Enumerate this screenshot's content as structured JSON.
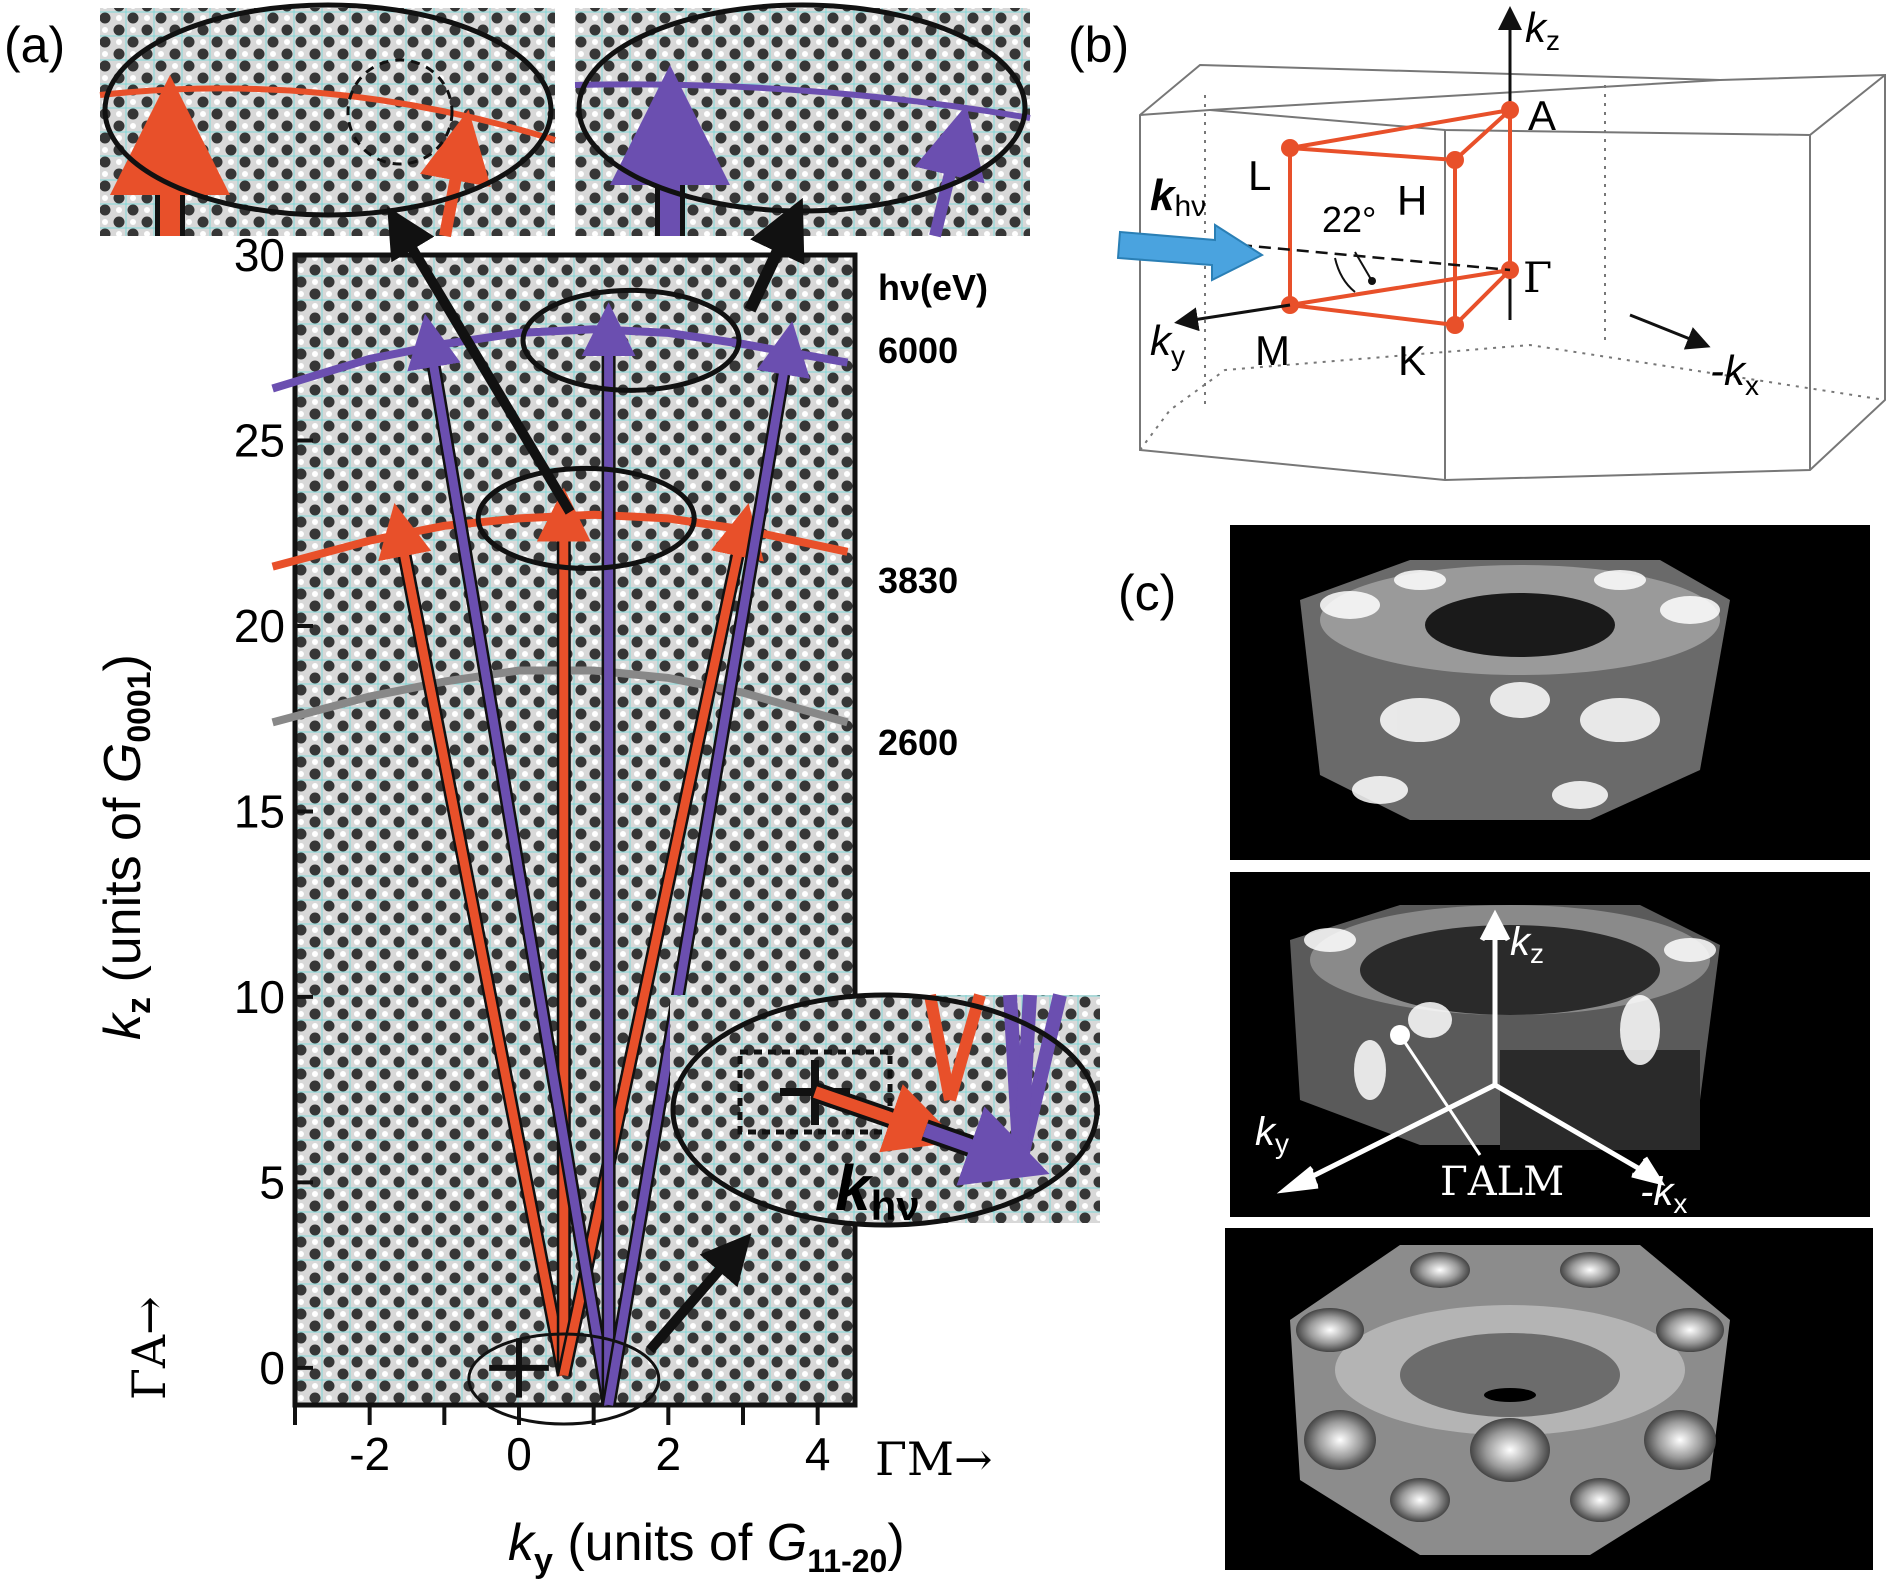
{
  "figure": {
    "panel_a": {
      "label": "(a)",
      "ylabel_k": "k",
      "ylabel_sub": "z",
      "ylabel_units": " (units of ",
      "ylabel_G": "G",
      "ylabel_Gsub": "0001",
      "ylabel_close": ")",
      "xlabel_k": "k",
      "xlabel_sub": "y",
      "xlabel_units": " (units of ",
      "xlabel_G": "G",
      "xlabel_Gsub": "11-20",
      "xlabel_close": ")",
      "gamma_a": "ΓA→",
      "gamma_m": "ΓM→",
      "hv_header": "hν(eV)",
      "inset_label_k": "k",
      "inset_label_sub": "hν",
      "chart_data": {
        "type": "line",
        "title": "",
        "xlabel": "ky (units of G11-20)",
        "ylabel": "kz (units of G0001)",
        "xlim": [
          -3,
          4.5
        ],
        "ylim": [
          -1,
          30
        ],
        "x_ticks": [
          -2,
          0,
          2,
          4
        ],
        "y_ticks": [
          0,
          5,
          10,
          15,
          20,
          25,
          30
        ],
        "series": [
          {
            "name": "6000",
            "color": "#6b4fb0",
            "x": [
              -3.3,
              -2,
              -1,
              0,
              1,
              2,
              3,
              4.4
            ],
            "y": [
              26.4,
              27.2,
              27.6,
              27.9,
              28.0,
              27.9,
              27.6,
              27.1
            ]
          },
          {
            "name": "3830",
            "color": "#e8502a",
            "x": [
              -3.3,
              -2,
              -1,
              0,
              1,
              2,
              3,
              4.4
            ],
            "y": [
              21.6,
              22.3,
              22.7,
              22.9,
              23.0,
              22.9,
              22.6,
              22.0
            ]
          },
          {
            "name": "2600",
            "color": "#888888",
            "x": [
              -3.3,
              -2,
              -1,
              0,
              1,
              2,
              3,
              4.4
            ],
            "y": [
              17.4,
              18.1,
              18.5,
              18.8,
              18.8,
              18.6,
              18.2,
              17.4
            ]
          }
        ],
        "arrows": [
          {
            "color": "#e8502a",
            "from": [
              0.6,
              -0.2
            ],
            "to": [
              -1.6,
              22.6
            ]
          },
          {
            "color": "#e8502a",
            "from": [
              0.6,
              -0.2
            ],
            "to": [
              0.6,
              23.0
            ]
          },
          {
            "color": "#e8502a",
            "from": [
              0.6,
              -0.2
            ],
            "to": [
              3.0,
              22.6
            ]
          },
          {
            "color": "#6b4fb0",
            "from": [
              1.2,
              -1.0
            ],
            "to": [
              -1.2,
              27.7
            ]
          },
          {
            "color": "#6b4fb0",
            "from": [
              1.2,
              -1.0
            ],
            "to": [
              1.2,
              28.0
            ]
          },
          {
            "color": "#6b4fb0",
            "from": [
              1.2,
              -1.0
            ],
            "to": [
              3.6,
              27.5
            ]
          }
        ]
      }
    },
    "panel_b": {
      "label": "(b)",
      "kz": "k",
      "kz_sub": "z",
      "ky": "k",
      "ky_sub": "y",
      "mkx": "-k",
      "mkx_sub": "x",
      "khv": "k",
      "khv_sub": "hν",
      "points": [
        "A",
        "L",
        "H",
        "Γ",
        "M",
        "K"
      ],
      "angle": "22°",
      "colors": {
        "bz": "#e8502a",
        "beam": "#4aa3df"
      }
    },
    "panel_c": {
      "label": "(c)",
      "kz": "k",
      "kz_sub": "z",
      "ky": "k",
      "ky_sub": "y",
      "mkx": "-k",
      "mkx_sub": "x",
      "plane": "ΓALM"
    }
  }
}
